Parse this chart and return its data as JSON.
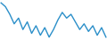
{
  "y": [
    4.2,
    3.8,
    3.0,
    2.0,
    2.6,
    1.4,
    2.2,
    1.0,
    1.8,
    0.8,
    1.6,
    0.6,
    1.4,
    2.4,
    3.2,
    2.6,
    3.0,
    2.2,
    1.4,
    2.0,
    1.2,
    1.8,
    0.8,
    1.6,
    0.6
  ],
  "line_color": "#2b8fc9",
  "linewidth": 1.0,
  "background_color": "#ffffff"
}
